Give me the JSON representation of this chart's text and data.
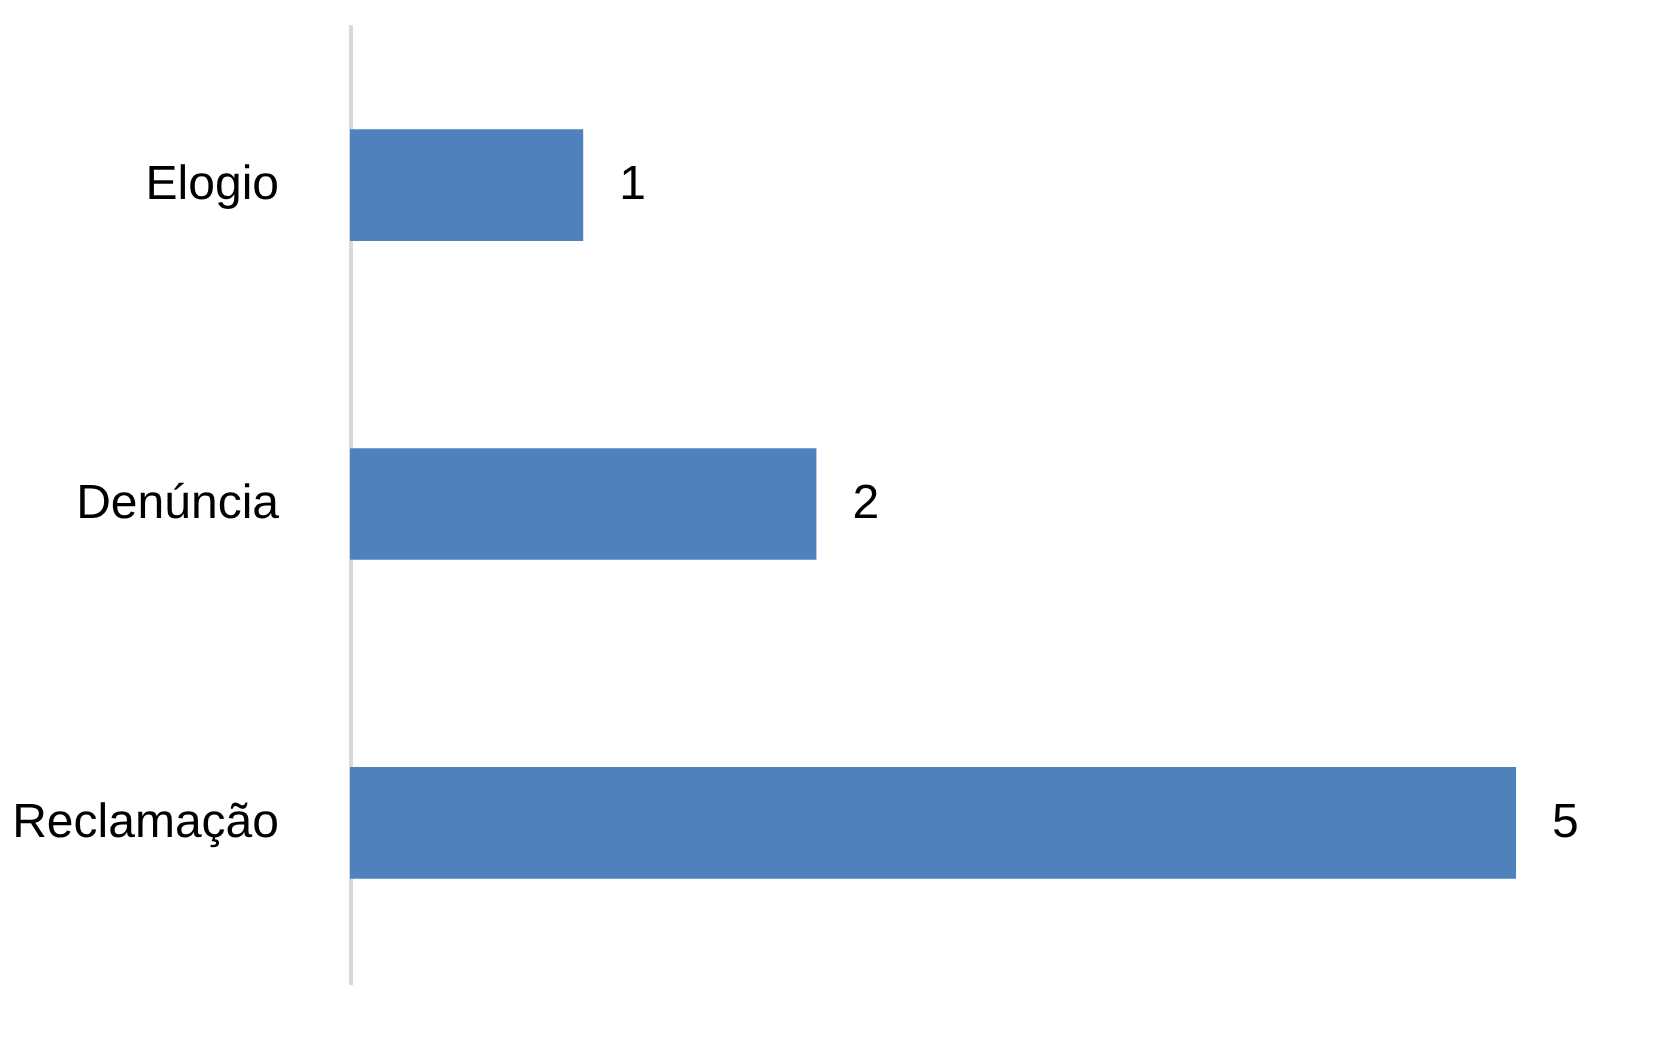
{
  "chart_data": {
    "type": "bar",
    "orientation": "horizontal",
    "categories": [
      "Elogio",
      "Denúncia",
      "Reclamação"
    ],
    "values": [
      1,
      2,
      5
    ],
    "color": "#4f81bd",
    "data_labels": true
  }
}
